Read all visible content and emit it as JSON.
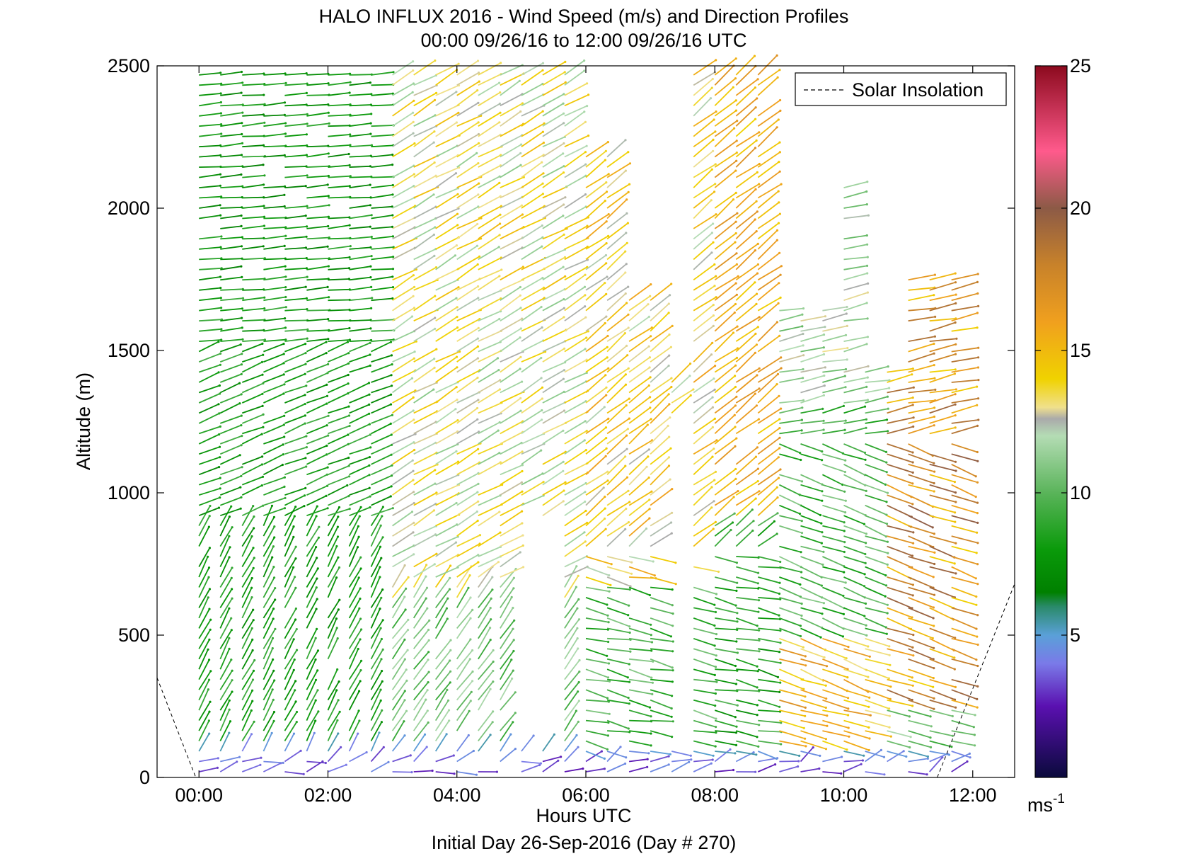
{
  "chart_data": {
    "type": "vector-field",
    "title": "HALO INFLUX 2016 - Wind Speed (m/s) and Direction Profiles",
    "subtitle": "00:00 09/26/16 to 12:00 09/26/16  UTC",
    "xlabel": "Hours UTC",
    "xlabel2": "Initial Day 26-Sep-2016 (Day # 270)",
    "ylabel": "Altitude (m)",
    "x_range_hours": [
      -0.65,
      12.65
    ],
    "ylim": [
      0,
      2500
    ],
    "x_ticks": [
      {
        "hour": 0,
        "label": "00:00"
      },
      {
        "hour": 2,
        "label": "02:00"
      },
      {
        "hour": 4,
        "label": "04:00"
      },
      {
        "hour": 6,
        "label": "06:00"
      },
      {
        "hour": 8,
        "label": "08:00"
      },
      {
        "hour": 10,
        "label": "10:00"
      },
      {
        "hour": 12,
        "label": "12:00"
      }
    ],
    "y_ticks": [
      {
        "value": 0,
        "label": "0"
      },
      {
        "value": 500,
        "label": "500"
      },
      {
        "value": 1000,
        "label": "1000"
      },
      {
        "value": 1500,
        "label": "1500"
      },
      {
        "value": 2000,
        "label": "2000"
      },
      {
        "value": 2500,
        "label": "2500"
      }
    ],
    "colorbar": {
      "min": 0,
      "max": 25,
      "ticks": [
        {
          "value": 5,
          "label": "5"
        },
        {
          "value": 10,
          "label": "10"
        },
        {
          "value": 15,
          "label": "15"
        },
        {
          "value": 20,
          "label": "20"
        },
        {
          "value": 25,
          "label": "25"
        }
      ],
      "unit_base": "ms",
      "unit_exp": "-1",
      "stops": [
        {
          "v": 0,
          "c": "#0a0a3c"
        },
        {
          "v": 2.5,
          "c": "#5a10b0"
        },
        {
          "v": 4,
          "c": "#7a7ae8"
        },
        {
          "v": 5,
          "c": "#5aa0d8"
        },
        {
          "v": 6,
          "c": "#2a8a6a"
        },
        {
          "v": 6.5,
          "c": "#008000"
        },
        {
          "v": 8,
          "c": "#0a9a0a"
        },
        {
          "v": 10,
          "c": "#5ab45a"
        },
        {
          "v": 12,
          "c": "#b4dcb4"
        },
        {
          "v": 12.6,
          "c": "#aaaaaa"
        },
        {
          "v": 13,
          "c": "#f0e08c"
        },
        {
          "v": 14,
          "c": "#f0d200"
        },
        {
          "v": 16,
          "c": "#f0a01e"
        },
        {
          "v": 18,
          "c": "#c8822a"
        },
        {
          "v": 20,
          "c": "#8c5a46"
        },
        {
          "v": 22,
          "c": "#ff5a8c"
        },
        {
          "v": 25,
          "c": "#8c0a1e"
        }
      ]
    },
    "legend": {
      "label": "Solar Insolation",
      "style": "dashed",
      "color": "#000000",
      "placement": "top-right"
    },
    "solar_insolation": {
      "segments": [
        [
          [
            -0.65,
            350
          ],
          [
            -0.05,
            0
          ]
        ],
        [
          [
            11.45,
            0
          ],
          [
            12.65,
            680
          ]
        ]
      ]
    },
    "profile_times_hours": [
      0,
      0.33,
      0.67,
      1.0,
      1.33,
      1.67,
      2.0,
      2.33,
      2.67,
      3.0,
      3.33,
      3.67,
      4.0,
      4.33,
      4.67,
      5.0,
      5.33,
      5.67,
      6.0,
      6.33,
      6.67,
      7.0,
      7.33,
      7.67,
      8.0,
      8.33,
      8.67,
      9.0,
      9.33,
      9.67,
      10.0,
      10.33,
      10.67,
      11.0,
      11.33,
      11.67
    ],
    "altitude_spacing_m": 36,
    "wind_summary": "Vectors plotted along each profile column; speed mapped to colorbar. Lower levels near surface 2-5 m/s (purple/blue), 6-10 m/s green through mid-levels, 12-18 m/s yellow/orange aloft after 03:00, isolated 20-25 m/s (brown/red) near 07:30 and 11:00."
  }
}
